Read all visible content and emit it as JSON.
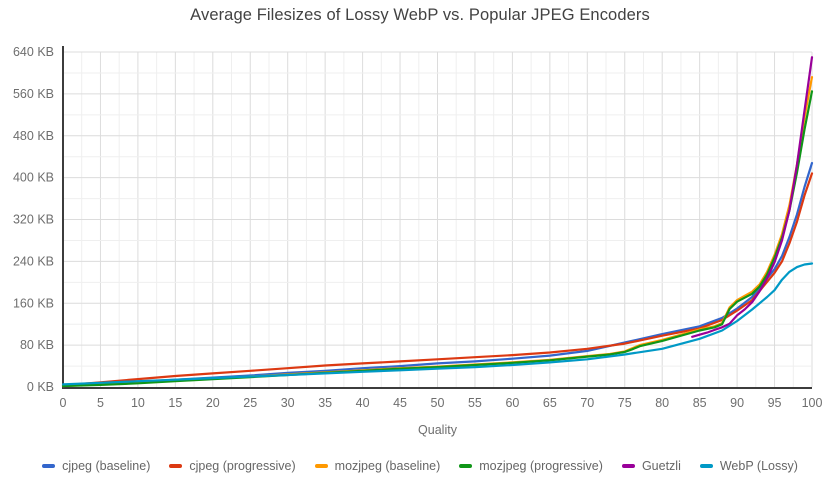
{
  "chart_data": {
    "type": "line",
    "title": "Average Filesizes of Lossy WebP vs. Popular JPEG Encoders",
    "xlabel": "Quality",
    "ylabel": "",
    "xlim": [
      0,
      100
    ],
    "ylim": [
      0,
      640
    ],
    "grid": true,
    "legend_position": "bottom",
    "x_ticks": [
      0,
      5,
      10,
      15,
      20,
      25,
      30,
      35,
      40,
      45,
      50,
      55,
      60,
      65,
      70,
      75,
      80,
      85,
      90,
      95,
      100
    ],
    "x_tick_labels": [
      "0",
      "5",
      "10",
      "15",
      "20",
      "25",
      "30",
      "35",
      "40",
      "45",
      "50",
      "55",
      "60",
      "65",
      "70",
      "75",
      "80",
      "85",
      "90",
      "95",
      "100"
    ],
    "y_ticks": [
      0,
      80,
      160,
      240,
      320,
      400,
      480,
      560,
      640
    ],
    "y_tick_labels": [
      "0 KB",
      "80 KB",
      "160 KB",
      "240 KB",
      "320 KB",
      "400 KB",
      "480 KB",
      "560 KB",
      "640 KB"
    ],
    "minor_x_step": 2.5,
    "minor_y_step": 40,
    "series": [
      {
        "name": "cjpeg (baseline)",
        "color": "#3366CC",
        "points": [
          [
            0,
            2
          ],
          [
            5,
            6
          ],
          [
            10,
            10
          ],
          [
            15,
            14
          ],
          [
            20,
            18
          ],
          [
            25,
            22
          ],
          [
            30,
            27
          ],
          [
            35,
            31
          ],
          [
            40,
            36
          ],
          [
            45,
            40
          ],
          [
            50,
            45
          ],
          [
            55,
            49
          ],
          [
            60,
            54
          ],
          [
            65,
            60
          ],
          [
            70,
            69
          ],
          [
            75,
            85
          ],
          [
            80,
            101
          ],
          [
            85,
            116
          ],
          [
            88,
            132
          ],
          [
            90,
            150
          ],
          [
            92,
            172
          ],
          [
            95,
            225
          ],
          [
            96,
            250
          ],
          [
            97,
            287
          ],
          [
            98,
            330
          ],
          [
            99,
            382
          ],
          [
            100,
            428
          ]
        ]
      },
      {
        "name": "cjpeg (progressive)",
        "color": "#DC3912",
        "points": [
          [
            0,
            3
          ],
          [
            5,
            9
          ],
          [
            10,
            15
          ],
          [
            15,
            21
          ],
          [
            20,
            26
          ],
          [
            25,
            31
          ],
          [
            30,
            36
          ],
          [
            35,
            41
          ],
          [
            40,
            45
          ],
          [
            45,
            49
          ],
          [
            50,
            53
          ],
          [
            55,
            57
          ],
          [
            60,
            61
          ],
          [
            65,
            66
          ],
          [
            70,
            73
          ],
          [
            75,
            83
          ],
          [
            80,
            98
          ],
          [
            85,
            112
          ],
          [
            88,
            128
          ],
          [
            90,
            146
          ],
          [
            92,
            166
          ],
          [
            95,
            218
          ],
          [
            96,
            240
          ],
          [
            97,
            275
          ],
          [
            98,
            316
          ],
          [
            99,
            366
          ],
          [
            100,
            408
          ]
        ]
      },
      {
        "name": "mozjpeg (baseline)",
        "color": "#FF9900",
        "points": [
          [
            0,
            2
          ],
          [
            5,
            5
          ],
          [
            10,
            8
          ],
          [
            15,
            12
          ],
          [
            20,
            16
          ],
          [
            25,
            20
          ],
          [
            30,
            24
          ],
          [
            35,
            28
          ],
          [
            40,
            32
          ],
          [
            45,
            36
          ],
          [
            50,
            39
          ],
          [
            55,
            43
          ],
          [
            60,
            47
          ],
          [
            65,
            52
          ],
          [
            70,
            59
          ],
          [
            73,
            63
          ],
          [
            75,
            68
          ],
          [
            76,
            74
          ],
          [
            77,
            80
          ],
          [
            80,
            90
          ],
          [
            85,
            110
          ],
          [
            87,
            116
          ],
          [
            88,
            122
          ],
          [
            89,
            152
          ],
          [
            90,
            166
          ],
          [
            92,
            182
          ],
          [
            93,
            196
          ],
          [
            94,
            220
          ],
          [
            95,
            252
          ],
          [
            96,
            292
          ],
          [
            97,
            348
          ],
          [
            98,
            425
          ],
          [
            99,
            515
          ],
          [
            100,
            592
          ]
        ]
      },
      {
        "name": "mozjpeg (progressive)",
        "color": "#109618",
        "points": [
          [
            0,
            2
          ],
          [
            5,
            4
          ],
          [
            10,
            7
          ],
          [
            15,
            11
          ],
          [
            20,
            15
          ],
          [
            25,
            19
          ],
          [
            30,
            23
          ],
          [
            35,
            27
          ],
          [
            40,
            31
          ],
          [
            45,
            35
          ],
          [
            50,
            38
          ],
          [
            55,
            42
          ],
          [
            60,
            46
          ],
          [
            65,
            51
          ],
          [
            70,
            58
          ],
          [
            73,
            62
          ],
          [
            75,
            67
          ],
          [
            76,
            72
          ],
          [
            77,
            78
          ],
          [
            80,
            88
          ],
          [
            85,
            108
          ],
          [
            87,
            114
          ],
          [
            88,
            120
          ],
          [
            89,
            149
          ],
          [
            90,
            163
          ],
          [
            92,
            178
          ],
          [
            93,
            192
          ],
          [
            94,
            215
          ],
          [
            95,
            247
          ],
          [
            96,
            285
          ],
          [
            97,
            338
          ],
          [
            98,
            410
          ],
          [
            99,
            492
          ],
          [
            100,
            565
          ]
        ]
      },
      {
        "name": "Guetzli",
        "color": "#990099",
        "points": [
          [
            84,
            96
          ],
          [
            85,
            100
          ],
          [
            86,
            104
          ],
          [
            87,
            109
          ],
          [
            88,
            114
          ],
          [
            89,
            121
          ],
          [
            90,
            137
          ],
          [
            91,
            148
          ],
          [
            92,
            162
          ],
          [
            93,
            183
          ],
          [
            94,
            208
          ],
          [
            95,
            238
          ],
          [
            96,
            280
          ],
          [
            97,
            338
          ],
          [
            98,
            425
          ],
          [
            99,
            528
          ],
          [
            100,
            630
          ]
        ]
      },
      {
        "name": "WebP (Lossy)",
        "color": "#0099C6",
        "points": [
          [
            0,
            5
          ],
          [
            5,
            8
          ],
          [
            10,
            11
          ],
          [
            15,
            14
          ],
          [
            20,
            17
          ],
          [
            25,
            20
          ],
          [
            30,
            23
          ],
          [
            35,
            26
          ],
          [
            40,
            29
          ],
          [
            45,
            32
          ],
          [
            50,
            35
          ],
          [
            55,
            38
          ],
          [
            60,
            42
          ],
          [
            65,
            47
          ],
          [
            70,
            53
          ],
          [
            75,
            62
          ],
          [
            80,
            73
          ],
          [
            85,
            92
          ],
          [
            88,
            108
          ],
          [
            90,
            126
          ],
          [
            92,
            148
          ],
          [
            94,
            172
          ],
          [
            95,
            185
          ],
          [
            96,
            205
          ],
          [
            97,
            220
          ],
          [
            98,
            229
          ],
          [
            99,
            234
          ],
          [
            100,
            236
          ]
        ]
      }
    ]
  },
  "style": {
    "axis_color": "#3c3c3c",
    "grid_major_color": "#dcdcdc",
    "grid_minor_color": "#efefef",
    "tick_text_color": "#6e6e6e",
    "title_color": "#424242"
  }
}
